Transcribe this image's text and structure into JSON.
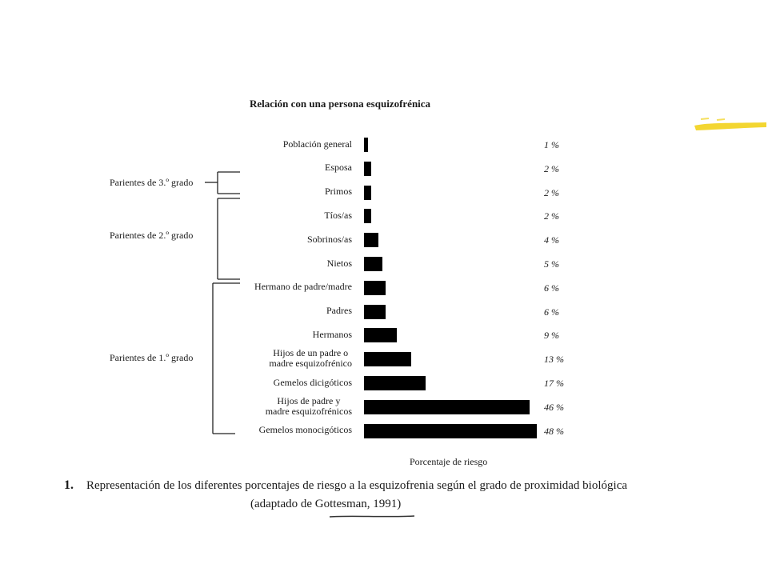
{
  "chart_data": {
    "type": "bar",
    "orientation": "horizontal",
    "title": "Relación con una persona esquizofrénica",
    "xlabel": "Porcentaje de riesgo",
    "ylabel": "",
    "xlim": [
      0,
      48
    ],
    "categories": [
      "Población general",
      "Esposa",
      "Primos",
      "Tíos/as",
      "Sobrinos/as",
      "Nietos",
      "Hermano de padre/madre",
      "Padres",
      "Hermanos",
      "Hijos de un padre o madre esquizofrénico",
      "Gemelos dicigóticos",
      "Hijos de padre y madre esquizofrénicos",
      "Gemelos monocigóticos"
    ],
    "category_lines": [
      [
        "Población general"
      ],
      [
        "Esposa"
      ],
      [
        "Primos"
      ],
      [
        "Tíos/as"
      ],
      [
        "Sobrinos/as"
      ],
      [
        "Nietos"
      ],
      [
        "Hermano de padre/madre"
      ],
      [
        "Padres"
      ],
      [
        "Hermanos"
      ],
      [
        "Hijos de un padre o",
        "madre esquizofrénico"
      ],
      [
        "Gemelos dicigóticos"
      ],
      [
        "Hijos de padre y",
        "madre esquizofrénicos"
      ],
      [
        "Gemelos monocigóticos"
      ]
    ],
    "values": [
      1,
      2,
      2,
      2,
      4,
      5,
      6,
      6,
      9,
      13,
      17,
      46,
      48
    ],
    "value_labels": [
      "1 %",
      "2 %",
      "2 %",
      "2 %",
      "4 %",
      "5 %",
      "6 %",
      "6 %",
      "9 %",
      "13 %",
      "17 %",
      "46 %",
      "48 %"
    ],
    "groups": [
      {
        "label": "Parientes de 3.º grado",
        "members": [
          2
        ]
      },
      {
        "label": "Parientes de 2.º grado",
        "members": [
          3,
          4,
          5,
          6
        ]
      },
      {
        "label": "Parientes de 1.º grado",
        "members": [
          7,
          8,
          9,
          10,
          11,
          12
        ]
      }
    ],
    "bar_color": "#000000",
    "grid": false
  },
  "caption": {
    "number": "1.",
    "text": "Representación de los diferentes porcentajes de riesgo a la esquizofrenia según el grado de proximidad biológica",
    "source": "(adaptado de Gottesman, 1991)"
  },
  "decoration": {
    "highlighter_color": "#f2d21b"
  }
}
